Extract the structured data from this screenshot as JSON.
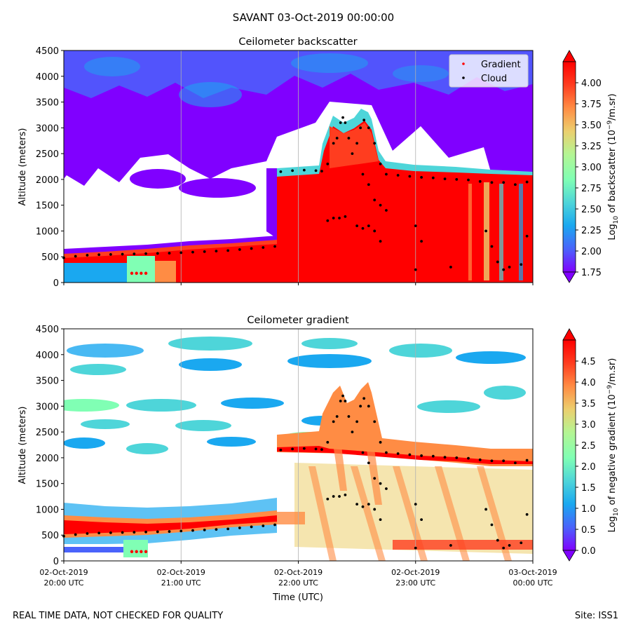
{
  "suptitle": "SAVANT 03-Oct-2019 00:00:00",
  "footer": {
    "left": "REAL TIME DATA, NOT CHECKED FOR QUALITY",
    "right": "Site: ISS1"
  },
  "colors": {
    "cloud": "#000000",
    "gradient": "#ff0000",
    "colormap": [
      "#8000ff",
      "#4a63fb",
      "#1aa8f0",
      "#4ed5d9",
      "#80ffb4",
      "#b4f593",
      "#eccf6e",
      "#ff8c44",
      "#ff3d1f",
      "#ff0000"
    ],
    "gridline": "#b0b0b0"
  },
  "x_axis": {
    "label": "Time (UTC)",
    "ticks": [
      {
        "t": 0,
        "date": "02-Oct-2019",
        "time": "20:00 UTC"
      },
      {
        "t": 1,
        "date": "02-Oct-2019",
        "time": "21:00 UTC"
      },
      {
        "t": 2,
        "date": "02-Oct-2019",
        "time": "22:00 UTC"
      },
      {
        "t": 3,
        "date": "02-Oct-2019",
        "time": "23:00 UTC"
      },
      {
        "t": 4,
        "date": "03-Oct-2019",
        "time": "00:00 UTC"
      }
    ]
  },
  "legend": {
    "placement": "top-right",
    "entries": [
      {
        "label": "Gradient",
        "color": "#ff0000"
      },
      {
        "label": "Cloud",
        "color": "#000000"
      }
    ]
  },
  "chart_data": [
    {
      "type": "heatmap",
      "title": "Ceilometer backscatter",
      "xlabel": "",
      "ylabel": "Altitude (meters)",
      "xlim": [
        "02-Oct-2019 20:00 UTC",
        "03-Oct-2019 00:00 UTC"
      ],
      "ylim": [
        0,
        4500
      ],
      "yticks": [
        0,
        500,
        1000,
        1500,
        2000,
        2500,
        3000,
        3500,
        4000,
        4500
      ],
      "grid": "vertical lines at x ticks",
      "legend": "top-right",
      "colorbar": {
        "label_pre": "Log",
        "label_sub": "10",
        "label_mid": " of backscatter (10",
        "label_sup": "−9",
        "label_post": "/m.sr)",
        "range": [
          1.75,
          4.25
        ],
        "ticks": [
          "1.75",
          "2.00",
          "2.25",
          "2.50",
          "2.75",
          "3.00",
          "3.25",
          "3.50",
          "3.75",
          "4.00"
        ],
        "tick_values": [
          1.75,
          2.0,
          2.25,
          2.5,
          2.75,
          3.0,
          3.25,
          3.5,
          3.75,
          4.0
        ],
        "extend": "both"
      },
      "cloud_points": [
        {
          "t": 0.0,
          "y": 480
        },
        {
          "t": 0.1,
          "y": 510
        },
        {
          "t": 0.2,
          "y": 530
        },
        {
          "t": 0.3,
          "y": 540
        },
        {
          "t": 0.4,
          "y": 545
        },
        {
          "t": 0.5,
          "y": 550
        },
        {
          "t": 0.6,
          "y": 555
        },
        {
          "t": 0.7,
          "y": 560
        },
        {
          "t": 0.8,
          "y": 565
        },
        {
          "t": 0.9,
          "y": 570
        },
        {
          "t": 1.0,
          "y": 580
        },
        {
          "t": 1.1,
          "y": 590
        },
        {
          "t": 1.2,
          "y": 600
        },
        {
          "t": 1.3,
          "y": 610
        },
        {
          "t": 1.4,
          "y": 620
        },
        {
          "t": 1.5,
          "y": 640
        },
        {
          "t": 1.6,
          "y": 660
        },
        {
          "t": 1.7,
          "y": 680
        },
        {
          "t": 1.8,
          "y": 700
        },
        {
          "t": 1.85,
          "y": 2150
        },
        {
          "t": 1.95,
          "y": 2170
        },
        {
          "t": 2.05,
          "y": 2180
        },
        {
          "t": 2.15,
          "y": 2170
        },
        {
          "t": 2.2,
          "y": 2160
        },
        {
          "t": 2.25,
          "y": 2300
        },
        {
          "t": 2.3,
          "y": 2700
        },
        {
          "t": 2.33,
          "y": 2800
        },
        {
          "t": 2.36,
          "y": 3100
        },
        {
          "t": 2.38,
          "y": 3200
        },
        {
          "t": 2.4,
          "y": 3100
        },
        {
          "t": 2.43,
          "y": 2800
        },
        {
          "t": 2.46,
          "y": 2500
        },
        {
          "t": 2.5,
          "y": 2700
        },
        {
          "t": 2.53,
          "y": 3000
        },
        {
          "t": 2.56,
          "y": 3150
        },
        {
          "t": 2.6,
          "y": 3000
        },
        {
          "t": 2.65,
          "y": 2700
        },
        {
          "t": 2.7,
          "y": 2300
        },
        {
          "t": 2.25,
          "y": 1200
        },
        {
          "t": 2.3,
          "y": 1250
        },
        {
          "t": 2.35,
          "y": 1250
        },
        {
          "t": 2.4,
          "y": 1280
        },
        {
          "t": 2.5,
          "y": 1100
        },
        {
          "t": 2.55,
          "y": 1050
        },
        {
          "t": 2.6,
          "y": 1100
        },
        {
          "t": 2.65,
          "y": 1000
        },
        {
          "t": 2.7,
          "y": 800
        },
        {
          "t": 2.55,
          "y": 2100
        },
        {
          "t": 2.6,
          "y": 1900
        },
        {
          "t": 2.65,
          "y": 1600
        },
        {
          "t": 2.7,
          "y": 1500
        },
        {
          "t": 2.75,
          "y": 1400
        },
        {
          "t": 2.75,
          "y": 2100
        },
        {
          "t": 2.85,
          "y": 2080
        },
        {
          "t": 2.95,
          "y": 2060
        },
        {
          "t": 3.05,
          "y": 2040
        },
        {
          "t": 3.15,
          "y": 2030
        },
        {
          "t": 3.25,
          "y": 2010
        },
        {
          "t": 3.35,
          "y": 2000
        },
        {
          "t": 3.45,
          "y": 1990
        },
        {
          "t": 3.55,
          "y": 1960
        },
        {
          "t": 3.65,
          "y": 1940
        },
        {
          "t": 3.75,
          "y": 1940
        },
        {
          "t": 3.85,
          "y": 1900
        },
        {
          "t": 3.95,
          "y": 1950
        },
        {
          "t": 3.0,
          "y": 1100
        },
        {
          "t": 3.05,
          "y": 800
        },
        {
          "t": 3.0,
          "y": 250
        },
        {
          "t": 3.3,
          "y": 300
        },
        {
          "t": 3.6,
          "y": 1000
        },
        {
          "t": 3.65,
          "y": 700
        },
        {
          "t": 3.7,
          "y": 400
        },
        {
          "t": 3.75,
          "y": 250
        },
        {
          "t": 3.8,
          "y": 300
        },
        {
          "t": 3.9,
          "y": 350
        },
        {
          "t": 3.95,
          "y": 900
        }
      ],
      "gradient_points": [
        {
          "t": 0.58,
          "y": 180
        },
        {
          "t": 0.62,
          "y": 180
        },
        {
          "t": 0.66,
          "y": 180
        },
        {
          "t": 0.7,
          "y": 180
        }
      ]
    },
    {
      "type": "heatmap",
      "title": "Ceilometer gradient",
      "xlabel": "Time (UTC)",
      "ylabel": "Altitude (meters)",
      "xlim": [
        "02-Oct-2019 20:00 UTC",
        "03-Oct-2019 00:00 UTC"
      ],
      "ylim": [
        0,
        4500
      ],
      "yticks": [
        0,
        500,
        1000,
        1500,
        2000,
        2500,
        3000,
        3500,
        4000,
        4500
      ],
      "grid": "vertical lines at x ticks",
      "colorbar": {
        "label_pre": "Log",
        "label_sub": "10",
        "label_mid": " of negative gradient (10",
        "label_sup": "−9",
        "label_post": "/m.sr)",
        "range": [
          0.0,
          5.0
        ],
        "ticks": [
          "0.0",
          "0.5",
          "1.0",
          "1.5",
          "2.0",
          "2.5",
          "3.0",
          "3.5",
          "4.0",
          "4.5"
        ],
        "tick_values": [
          0.0,
          0.5,
          1.0,
          1.5,
          2.0,
          2.5,
          3.0,
          3.5,
          4.0,
          4.5
        ],
        "extend": "both"
      },
      "cloud_points": [
        {
          "t": 0.0,
          "y": 480
        },
        {
          "t": 0.1,
          "y": 510
        },
        {
          "t": 0.2,
          "y": 530
        },
        {
          "t": 0.3,
          "y": 540
        },
        {
          "t": 0.4,
          "y": 545
        },
        {
          "t": 0.5,
          "y": 550
        },
        {
          "t": 0.6,
          "y": 555
        },
        {
          "t": 0.7,
          "y": 560
        },
        {
          "t": 0.8,
          "y": 565
        },
        {
          "t": 0.9,
          "y": 570
        },
        {
          "t": 1.0,
          "y": 580
        },
        {
          "t": 1.1,
          "y": 590
        },
        {
          "t": 1.2,
          "y": 600
        },
        {
          "t": 1.3,
          "y": 610
        },
        {
          "t": 1.4,
          "y": 620
        },
        {
          "t": 1.5,
          "y": 640
        },
        {
          "t": 1.6,
          "y": 660
        },
        {
          "t": 1.7,
          "y": 680
        },
        {
          "t": 1.8,
          "y": 700
        },
        {
          "t": 1.85,
          "y": 2150
        },
        {
          "t": 1.95,
          "y": 2170
        },
        {
          "t": 2.05,
          "y": 2180
        },
        {
          "t": 2.15,
          "y": 2170
        },
        {
          "t": 2.2,
          "y": 2160
        },
        {
          "t": 2.25,
          "y": 2300
        },
        {
          "t": 2.3,
          "y": 2700
        },
        {
          "t": 2.33,
          "y": 2800
        },
        {
          "t": 2.36,
          "y": 3100
        },
        {
          "t": 2.38,
          "y": 3200
        },
        {
          "t": 2.4,
          "y": 3100
        },
        {
          "t": 2.43,
          "y": 2800
        },
        {
          "t": 2.46,
          "y": 2500
        },
        {
          "t": 2.5,
          "y": 2700
        },
        {
          "t": 2.53,
          "y": 3000
        },
        {
          "t": 2.56,
          "y": 3150
        },
        {
          "t": 2.6,
          "y": 3000
        },
        {
          "t": 2.65,
          "y": 2700
        },
        {
          "t": 2.7,
          "y": 2300
        },
        {
          "t": 2.25,
          "y": 1200
        },
        {
          "t": 2.3,
          "y": 1250
        },
        {
          "t": 2.35,
          "y": 1250
        },
        {
          "t": 2.4,
          "y": 1280
        },
        {
          "t": 2.5,
          "y": 1100
        },
        {
          "t": 2.55,
          "y": 1050
        },
        {
          "t": 2.6,
          "y": 1100
        },
        {
          "t": 2.65,
          "y": 1000
        },
        {
          "t": 2.7,
          "y": 800
        },
        {
          "t": 2.55,
          "y": 2100
        },
        {
          "t": 2.6,
          "y": 1900
        },
        {
          "t": 2.65,
          "y": 1600
        },
        {
          "t": 2.7,
          "y": 1500
        },
        {
          "t": 2.75,
          "y": 1400
        },
        {
          "t": 2.75,
          "y": 2100
        },
        {
          "t": 2.85,
          "y": 2080
        },
        {
          "t": 2.95,
          "y": 2060
        },
        {
          "t": 3.05,
          "y": 2040
        },
        {
          "t": 3.15,
          "y": 2030
        },
        {
          "t": 3.25,
          "y": 2010
        },
        {
          "t": 3.35,
          "y": 2000
        },
        {
          "t": 3.45,
          "y": 1990
        },
        {
          "t": 3.55,
          "y": 1960
        },
        {
          "t": 3.65,
          "y": 1940
        },
        {
          "t": 3.75,
          "y": 1940
        },
        {
          "t": 3.85,
          "y": 1900
        },
        {
          "t": 3.95,
          "y": 1950
        },
        {
          "t": 3.0,
          "y": 1100
        },
        {
          "t": 3.05,
          "y": 800
        },
        {
          "t": 3.0,
          "y": 250
        },
        {
          "t": 3.3,
          "y": 300
        },
        {
          "t": 3.6,
          "y": 1000
        },
        {
          "t": 3.65,
          "y": 700
        },
        {
          "t": 3.7,
          "y": 400
        },
        {
          "t": 3.75,
          "y": 250
        },
        {
          "t": 3.8,
          "y": 300
        },
        {
          "t": 3.9,
          "y": 350
        },
        {
          "t": 3.95,
          "y": 900
        }
      ],
      "gradient_points": [
        {
          "t": 0.58,
          "y": 180
        },
        {
          "t": 0.62,
          "y": 180
        },
        {
          "t": 0.66,
          "y": 180
        },
        {
          "t": 0.7,
          "y": 180
        }
      ]
    }
  ]
}
